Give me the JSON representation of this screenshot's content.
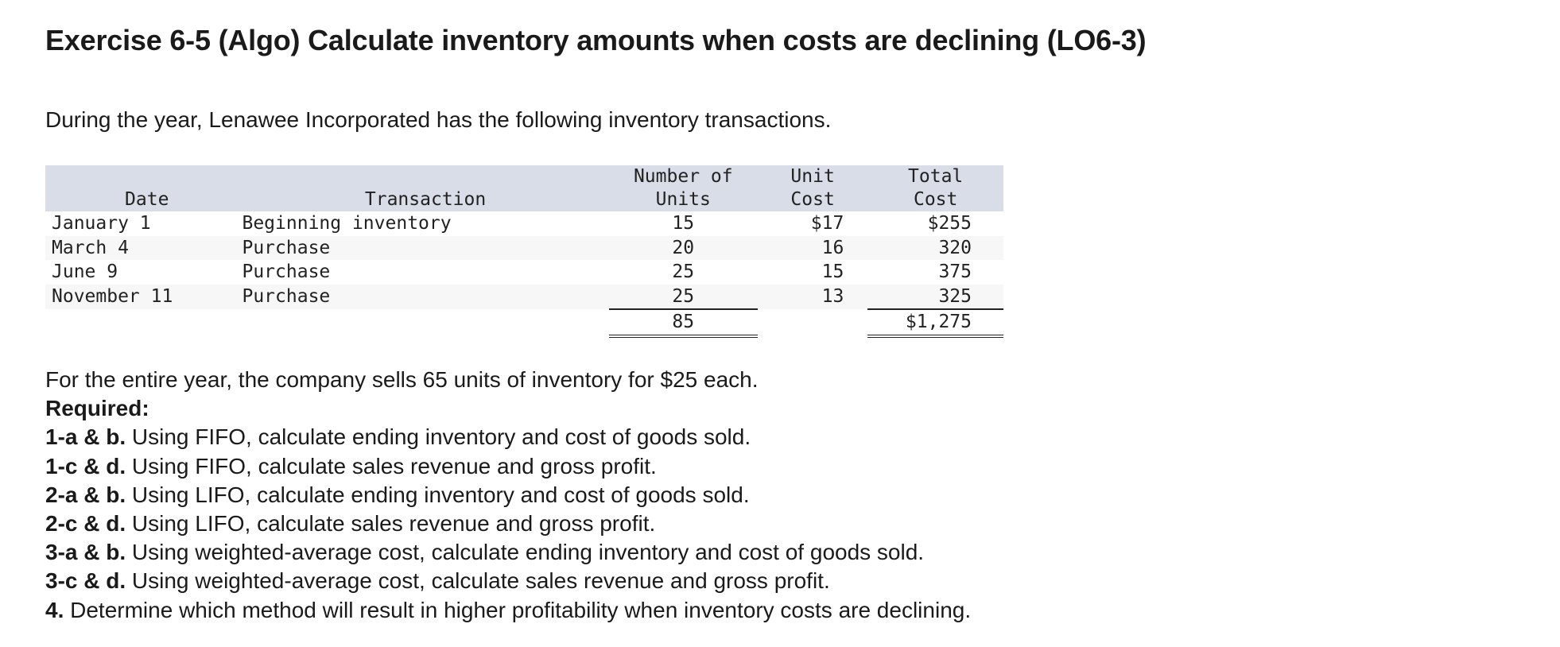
{
  "title": "Exercise 6-5 (Algo) Calculate inventory amounts when costs are declining (LO6-3)",
  "intro": "During the year, Lenawee Incorporated has the following inventory transactions.",
  "table": {
    "headers": [
      [
        "",
        "Date"
      ],
      [
        "",
        "Transaction"
      ],
      [
        "Number of",
        "Units"
      ],
      [
        "Unit",
        "Cost"
      ],
      [
        "Total",
        "Cost"
      ]
    ],
    "rows": [
      [
        "January 1",
        "Beginning inventory",
        "15",
        "$17",
        "$255"
      ],
      [
        "March 4",
        "Purchase",
        "20",
        "16",
        "320"
      ],
      [
        "June 9",
        "Purchase",
        "25",
        "15",
        "375"
      ],
      [
        "November 11",
        "Purchase",
        "25",
        "13",
        "325"
      ]
    ],
    "totals": {
      "units": "85",
      "total_cost": "$1,275"
    }
  },
  "sales_text": "For the entire year, the company sells 65 units of inventory for $25 each.",
  "required_label": "Required:",
  "requirements": [
    {
      "label": "1-a & b.",
      "text": " Using FIFO, calculate ending inventory and cost of goods sold."
    },
    {
      "label": "1-c & d.",
      "text": " Using FIFO, calculate sales revenue and gross profit."
    },
    {
      "label": "2-a & b.",
      "text": " Using LIFO, calculate ending inventory and cost of goods sold."
    },
    {
      "label": "2-c & d.",
      "text": " Using LIFO, calculate sales revenue and gross profit."
    },
    {
      "label": "3-a & b.",
      "text": " Using weighted-average cost, calculate ending inventory and cost of goods sold."
    },
    {
      "label": "3-c & d.",
      "text": " Using weighted-average cost, calculate sales revenue and gross profit."
    },
    {
      "label": "4.",
      "text": " Determine which method will result in higher profitability when inventory costs are declining."
    }
  ]
}
